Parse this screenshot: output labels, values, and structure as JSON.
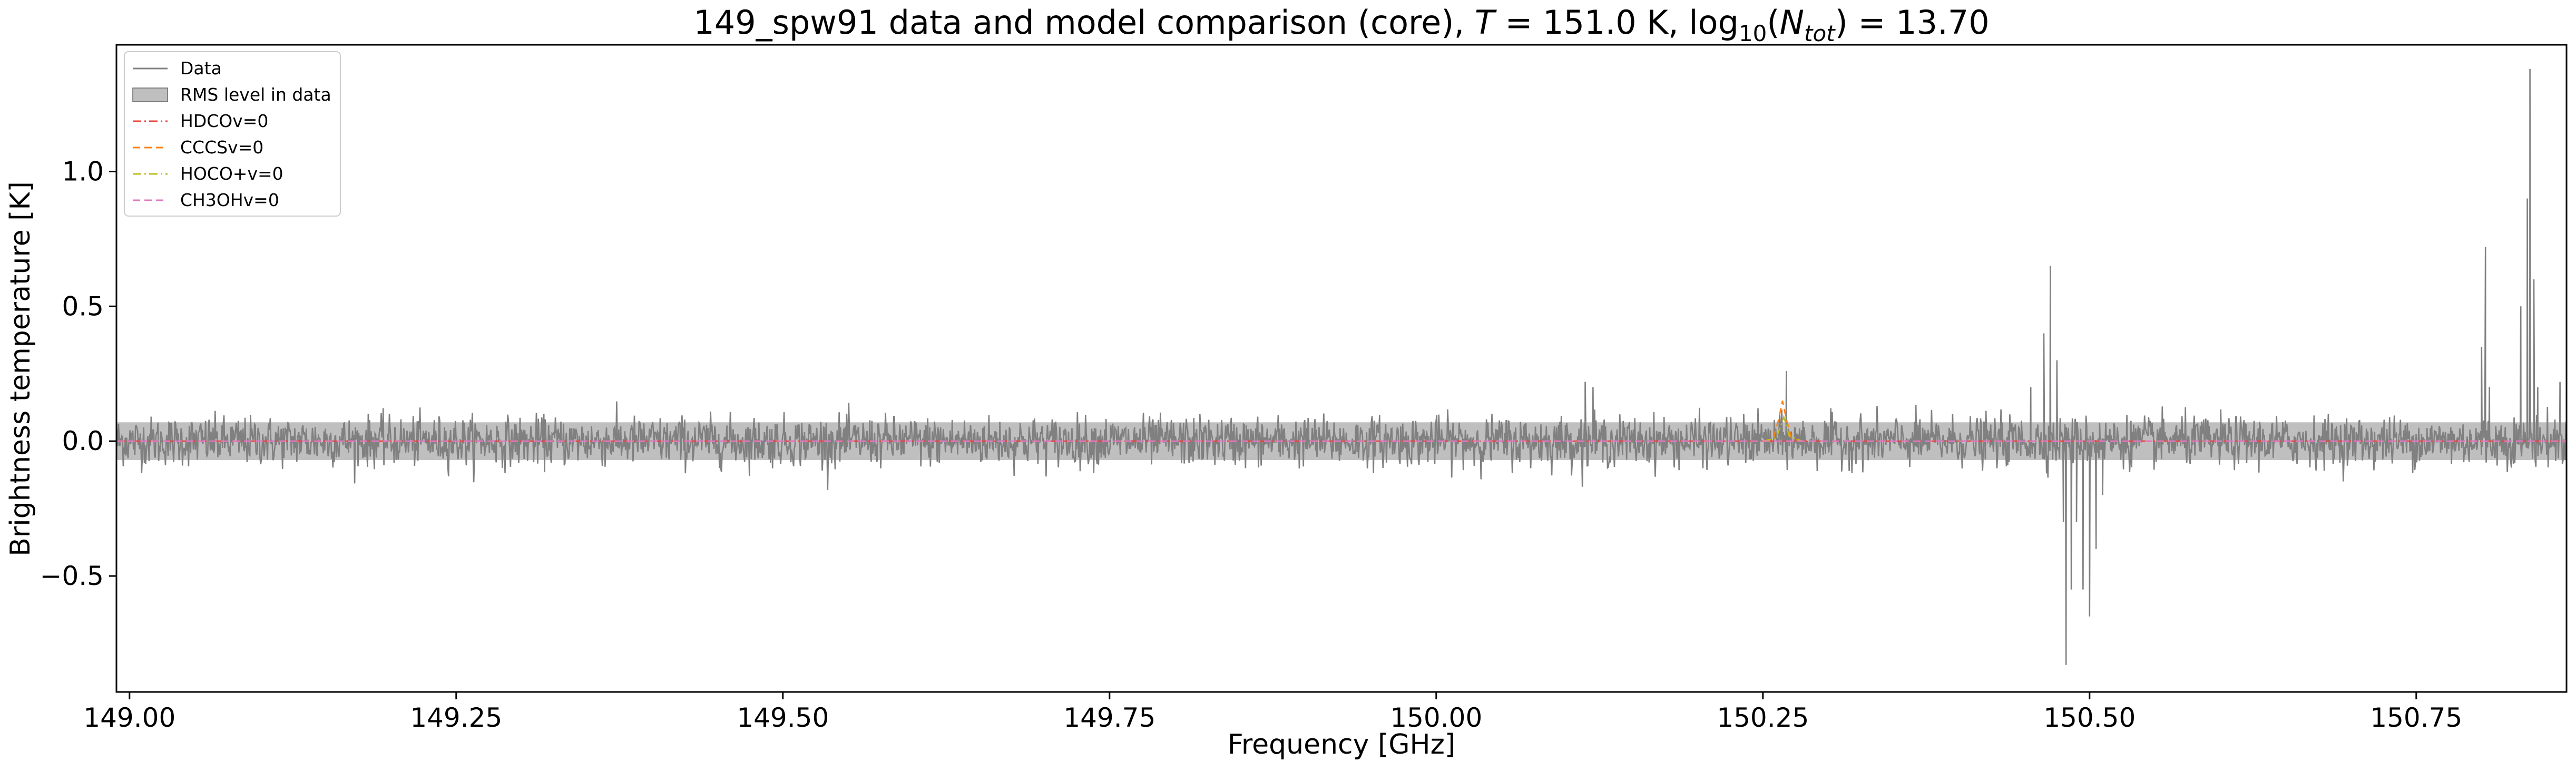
{
  "chart_data": {
    "type": "line",
    "title": "149_spw91 data and model comparison (core), T = 151.0 K, log10(Ntot) = 13.70",
    "title_parts": {
      "prefix": "149_spw91 data and model comparison (core), ",
      "T_symbol": "T",
      "T_value": " = 151.0 K, log",
      "log_base": "10",
      "open_paren": "(",
      "N_symbol": "N",
      "N_sub": "tot",
      "close": ") = 13.70"
    },
    "xlabel": "Frequency [GHz]",
    "ylabel": "Brightness temperature [K]",
    "xlim": [
      148.99,
      150.865
    ],
    "ylim": [
      -0.93,
      1.47
    ],
    "xticks": [
      149.0,
      149.25,
      149.5,
      149.75,
      150.0,
      150.25,
      150.5,
      150.75
    ],
    "xtick_labels": [
      "149.00",
      "149.25",
      "149.50",
      "149.75",
      "150.00",
      "150.25",
      "150.50",
      "150.75"
    ],
    "yticks": [
      -0.5,
      0.0,
      0.5,
      1.0
    ],
    "ytick_labels": [
      "−0.5",
      "0.0",
      "0.5",
      "1.0"
    ],
    "rms_level": 0.07,
    "legend_position": "upper-left",
    "grid": false,
    "series": [
      {
        "name": "Data",
        "style": "solid",
        "color": "#808080",
        "noise_sigma": 0.045,
        "x_range": [
          148.99,
          150.865
        ],
        "features": [
          {
            "x": 150.114,
            "y": 0.22
          },
          {
            "x": 150.12,
            "y": 0.2
          },
          {
            "x": 150.268,
            "y": 0.26
          },
          {
            "x": 150.455,
            "y": 0.2
          },
          {
            "x": 150.465,
            "y": 0.4
          },
          {
            "x": 150.47,
            "y": 0.65
          },
          {
            "x": 150.475,
            "y": 0.3
          },
          {
            "x": 150.48,
            "y": -0.3
          },
          {
            "x": 150.482,
            "y": -0.83
          },
          {
            "x": 150.486,
            "y": -0.55
          },
          {
            "x": 150.49,
            "y": -0.3
          },
          {
            "x": 150.495,
            "y": -0.55
          },
          {
            "x": 150.5,
            "y": -0.65
          },
          {
            "x": 150.505,
            "y": -0.4
          },
          {
            "x": 150.51,
            "y": -0.2
          },
          {
            "x": 150.8,
            "y": 0.35
          },
          {
            "x": 150.803,
            "y": 0.72
          },
          {
            "x": 150.806,
            "y": 0.2
          },
          {
            "x": 150.83,
            "y": 0.5
          },
          {
            "x": 150.835,
            "y": 0.9
          },
          {
            "x": 150.837,
            "y": 1.38
          },
          {
            "x": 150.84,
            "y": 0.6
          },
          {
            "x": 150.843,
            "y": 0.2
          },
          {
            "x": 150.86,
            "y": 0.22
          }
        ]
      },
      {
        "name": "RMS level in data",
        "style": "band",
        "color": "#999999",
        "y_range": [
          -0.07,
          0.07
        ]
      },
      {
        "name": "HDCOv=0",
        "style": "dashdot",
        "color": "#e8453c",
        "x": [
          148.99,
          150.865
        ],
        "y": [
          0.0,
          0.0
        ]
      },
      {
        "name": "CCCSv=0",
        "style": "dashed",
        "color": "#ff7f0e",
        "x": [
          150.25,
          150.258,
          150.262,
          150.265,
          150.268,
          150.272,
          150.28
        ],
        "y": [
          0.0,
          0.01,
          0.08,
          0.15,
          0.08,
          0.01,
          0.0
        ]
      },
      {
        "name": "HOCO+v=0",
        "style": "dashdot",
        "color": "#bcbd22",
        "x": [
          150.25,
          150.26,
          150.264,
          150.266,
          150.27,
          150.28
        ],
        "y": [
          0.0,
          0.01,
          0.06,
          0.09,
          0.02,
          0.0
        ]
      },
      {
        "name": "CH3OHv=0",
        "style": "dashed",
        "color": "#e377c2",
        "x": [
          148.99,
          150.865
        ],
        "y": [
          0.0,
          0.0
        ]
      }
    ]
  }
}
